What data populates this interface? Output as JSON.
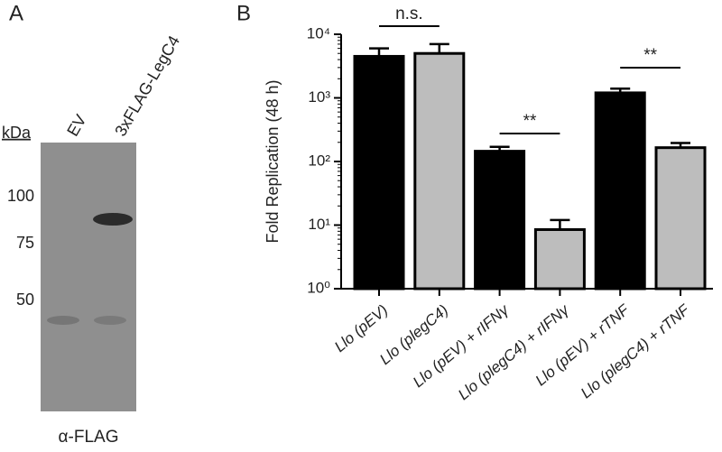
{
  "panel_a": {
    "letter": "A",
    "kda": "kDa",
    "lanes": [
      "EV",
      "3xFLAG-LegC4"
    ],
    "markers": [
      100,
      75,
      50
    ],
    "antibody": "α-FLAG"
  },
  "chart_data": {
    "type": "bar",
    "letter": "B",
    "ylabel": "Fold Replication (48 h)",
    "log_scale": true,
    "categories": [
      "Llo (pEV)",
      "Llo (plegC4)",
      "Llo (pEV) + rIFNγ",
      "Llo (plegC4) + rIFNγ",
      "Llo (pEV) + rTNF",
      "Llo (plegC4) + rTNF"
    ],
    "values": [
      4500,
      5000,
      145,
      8.5,
      1200,
      165
    ],
    "errors": [
      1500,
      2000,
      25,
      3.5,
      200,
      30
    ],
    "colors": [
      "#000000",
      "#bdbdbd",
      "#000000",
      "#bdbdbd",
      "#000000",
      "#bdbdbd"
    ],
    "ylim": [
      1,
      10000
    ],
    "yticks": [
      {
        "value": 1,
        "label": "10⁰"
      },
      {
        "value": 10,
        "label": "10¹"
      },
      {
        "value": 100,
        "label": "10²"
      },
      {
        "value": 1000,
        "label": "10³"
      },
      {
        "value": 10000,
        "label": "10⁴"
      }
    ],
    "annotations": [
      "n.s.",
      "**",
      "**"
    ]
  }
}
